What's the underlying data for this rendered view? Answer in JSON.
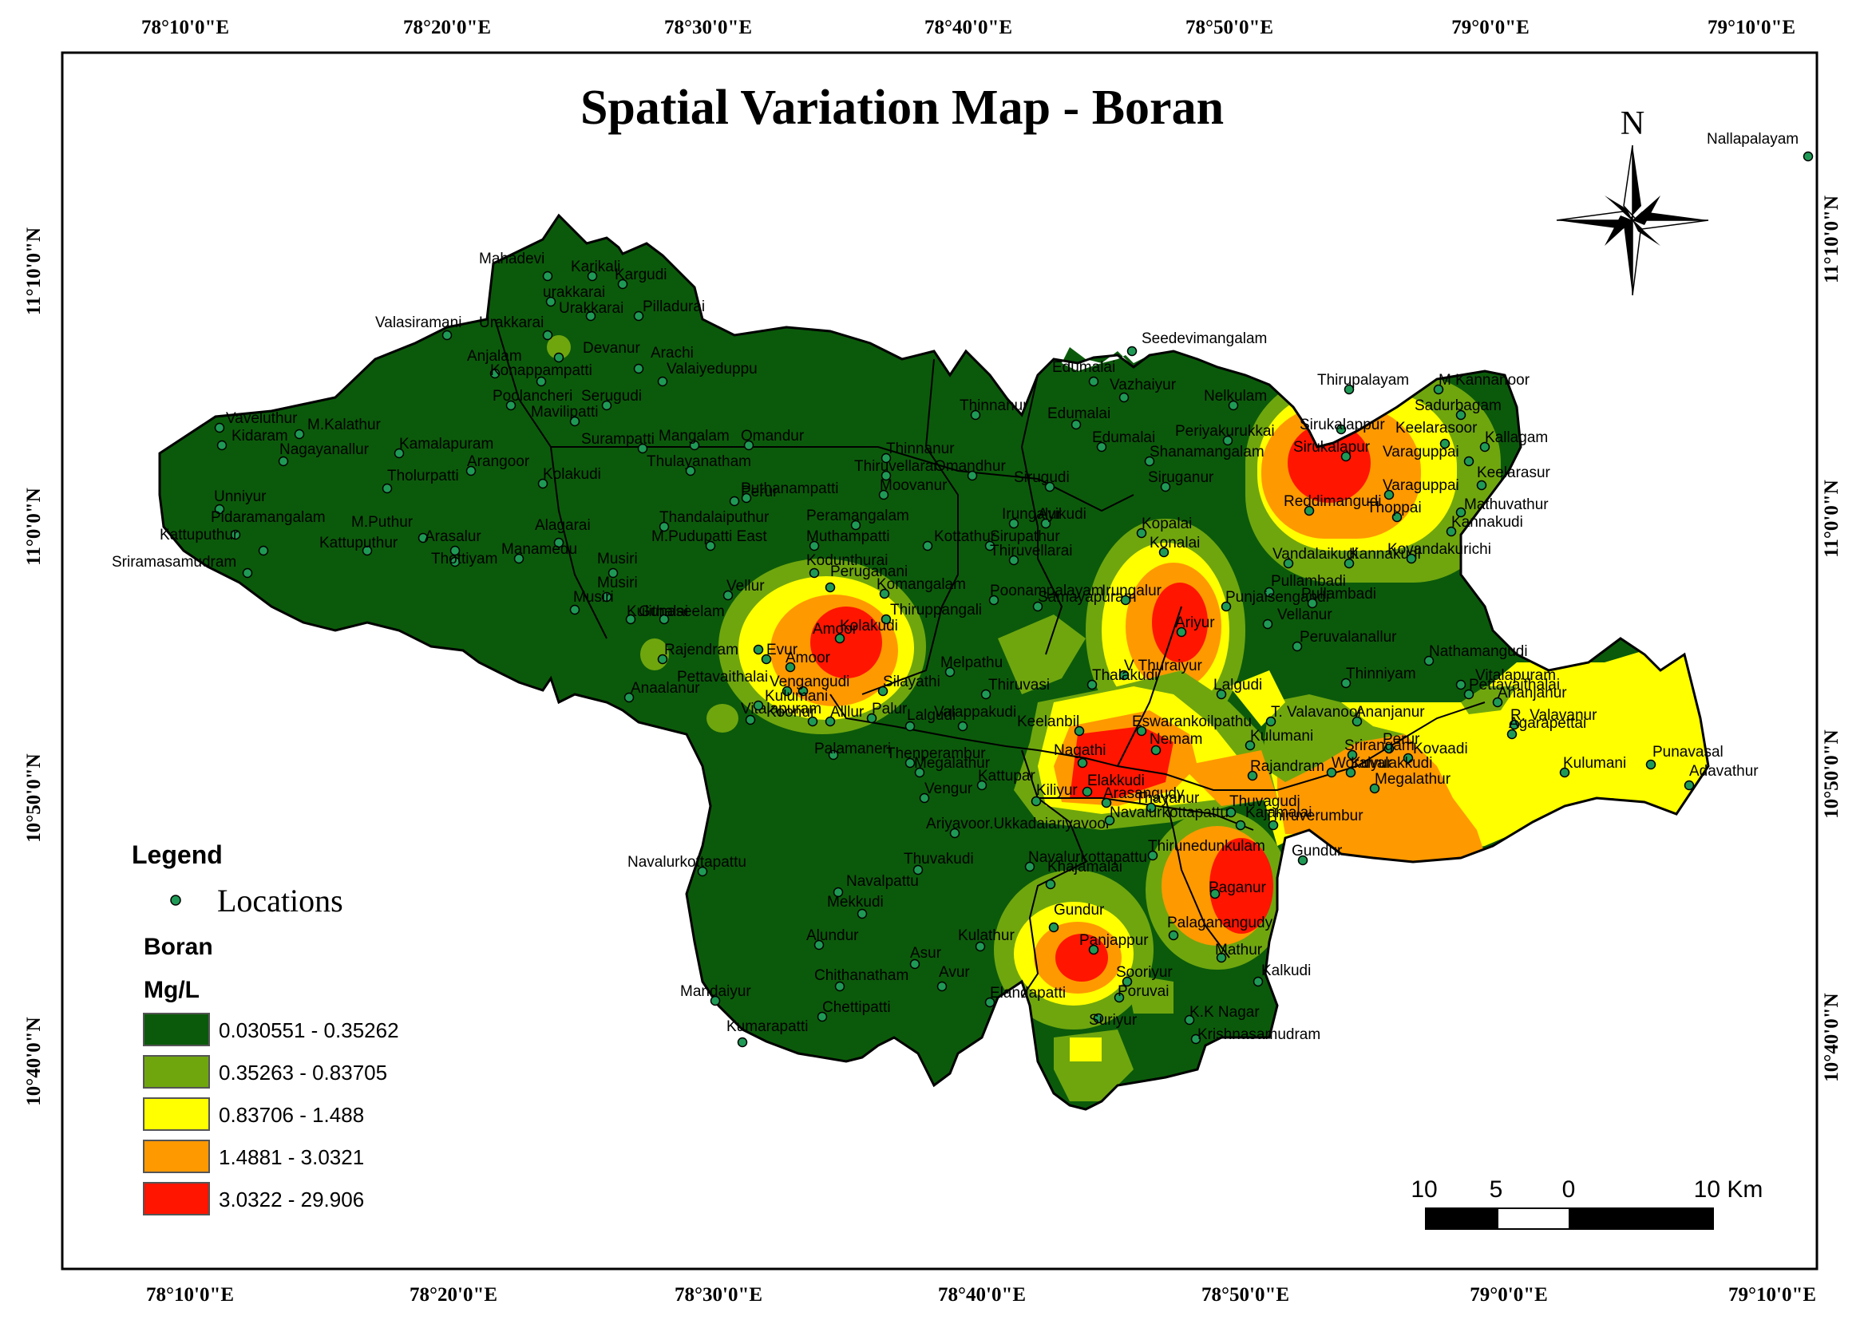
{
  "title": "Spatial Variation Map - Boran",
  "x_ticks": [
    "78°10'0\"E",
    "78°20'0\"E",
    "78°30'0\"E",
    "78°40'0\"E",
    "78°50'0\"E",
    "79°0'0\"E",
    "79°10'0\"E"
  ],
  "y_ticks": [
    "11°10'0\"N",
    "11°0'0\"N",
    "10°50'0\"N",
    "10°40'0\"N"
  ],
  "north_label": "N",
  "legend": {
    "heading": "Legend",
    "locations_label": "Locations",
    "layer_name": "Boran",
    "unit": "Mg/L",
    "classes": [
      {
        "range": "0.030551 - 0.35262",
        "color": "#0b5a0b"
      },
      {
        "range": "0.35263 - 0.83705",
        "color": "#6fa60e"
      },
      {
        "range": "0.83706 - 1.488",
        "color": "#ffff00"
      },
      {
        "range": "1.4881 - 3.0321",
        "color": "#ff9900"
      },
      {
        "range": "3.0322 - 29.906",
        "color": "#ff1500"
      }
    ]
  },
  "scale_bar": {
    "labels": [
      "10",
      "5",
      "0",
      "10 Km"
    ]
  },
  "colors": {
    "boundary": "#000000",
    "point": "#1f9a56",
    "frame": "#000000"
  },
  "places": [
    {
      "name": "Nallapalayam"
    },
    {
      "name": "Mahadevi"
    },
    {
      "name": "Karikali"
    },
    {
      "name": "Kargudi"
    },
    {
      "name": "urakkarai"
    },
    {
      "name": "Urakkarai"
    },
    {
      "name": "Pilladurai"
    },
    {
      "name": "Valasiramani"
    },
    {
      "name": "Urakkarai"
    },
    {
      "name": "Devanur"
    },
    {
      "name": "Arachi"
    },
    {
      "name": "Anjalam"
    },
    {
      "name": "Valaiyeduppu"
    },
    {
      "name": "Konappampatti"
    },
    {
      "name": "Poolancheri"
    },
    {
      "name": "Serugudi"
    },
    {
      "name": "Seedevimangalam"
    },
    {
      "name": "Vaveluthur"
    },
    {
      "name": "M.Kalathur"
    },
    {
      "name": "Mavilipatti"
    },
    {
      "name": "Edumalai"
    },
    {
      "name": "Vazhaiyur"
    },
    {
      "name": "Kidaram"
    },
    {
      "name": "Kamalapuram"
    },
    {
      "name": "Surampatti"
    },
    {
      "name": "Mangalam"
    },
    {
      "name": "Omandur"
    },
    {
      "name": "Thinnanur"
    },
    {
      "name": "Edumalai"
    },
    {
      "name": "Nagayanallur"
    },
    {
      "name": "Arangoor"
    },
    {
      "name": "Kolakudi"
    },
    {
      "name": "Thulayanatham"
    },
    {
      "name": "Thinnanur"
    },
    {
      "name": "Edumalai"
    },
    {
      "name": "Thirupalayam"
    },
    {
      "name": "M Kannanoor"
    },
    {
      "name": "Nelkulam"
    },
    {
      "name": "Sadurbagam"
    },
    {
      "name": "Unniyur"
    },
    {
      "name": "Tholurpatti"
    },
    {
      "name": "Thiruvellarai"
    },
    {
      "name": "Omandhur"
    },
    {
      "name": "Periyakurukkai"
    },
    {
      "name": "Sirukalappur"
    },
    {
      "name": "Keelarasoor"
    },
    {
      "name": "Kallagam"
    },
    {
      "name": "Puthanampatti"
    },
    {
      "name": "Moovanur"
    },
    {
      "name": "Sirugudi"
    },
    {
      "name": "Shanamangalam"
    },
    {
      "name": "Sirukalapur"
    },
    {
      "name": "Varaguppai"
    },
    {
      "name": "Pidaramangalam"
    },
    {
      "name": "M.Puthur"
    },
    {
      "name": "Perur"
    },
    {
      "name": "Siruganur"
    },
    {
      "name": "Keelarasur"
    },
    {
      "name": "Kattuputhur"
    },
    {
      "name": "Kattuputhur"
    },
    {
      "name": "Arasalur"
    },
    {
      "name": "Alagarai"
    },
    {
      "name": "Thandalaiputhur"
    },
    {
      "name": "Peramangalam"
    },
    {
      "name": "Irungalur"
    },
    {
      "name": "Ayikudi"
    },
    {
      "name": "Reddimangudi"
    },
    {
      "name": "Varaguppai"
    },
    {
      "name": "Mathuvathur"
    },
    {
      "name": "Sriramasamudram"
    },
    {
      "name": "Manamedu"
    },
    {
      "name": "Thottiyam"
    },
    {
      "name": "M.Pudupatti East"
    },
    {
      "name": "Muthampatti"
    },
    {
      "name": "Kottathur"
    },
    {
      "name": "Sirupathur"
    },
    {
      "name": "Kopalai"
    },
    {
      "name": "Thoppai"
    },
    {
      "name": "Kannakudi"
    },
    {
      "name": "Musiri"
    },
    {
      "name": "Thiruvellarai"
    },
    {
      "name": "Konalai"
    },
    {
      "name": "Kannakudi"
    },
    {
      "name": "Kovandakurichi"
    },
    {
      "name": "Musiri"
    },
    {
      "name": "Kodunthurai"
    },
    {
      "name": "Peruganani"
    },
    {
      "name": "Vandalaikudi"
    },
    {
      "name": "Vellur"
    },
    {
      "name": "Poonampalayam"
    },
    {
      "name": "Pullambadi"
    },
    {
      "name": "Komangalam"
    },
    {
      "name": "Musiri"
    },
    {
      "name": "Kulithalai"
    },
    {
      "name": "Gunaseelam"
    },
    {
      "name": "Thiruppangali"
    },
    {
      "name": "Samayapuram"
    },
    {
      "name": "Irungalur"
    },
    {
      "name": "Ariyur"
    },
    {
      "name": "Punjaisengandi"
    },
    {
      "name": "Pullambadi"
    },
    {
      "name": "Amoor"
    },
    {
      "name": "Kolakudi"
    },
    {
      "name": "Vellanur"
    },
    {
      "name": "Rajendram"
    },
    {
      "name": "Evur"
    },
    {
      "name": "Peruvalanallur"
    },
    {
      "name": "Nathamangudi"
    },
    {
      "name": "Amoor"
    },
    {
      "name": "Melpathu"
    },
    {
      "name": "V Thuraiyur"
    },
    {
      "name": "Pettavaithalai"
    },
    {
      "name": "Vengangudi"
    },
    {
      "name": "Silayathi"
    },
    {
      "name": "Thiruvasi"
    },
    {
      "name": "Thalakudi"
    },
    {
      "name": "Lalgudi"
    },
    {
      "name": "Thinniyam"
    },
    {
      "name": "Vitalapuram"
    },
    {
      "name": "Pettavaithalai"
    },
    {
      "name": "Anaalanur"
    },
    {
      "name": "Vitalapuram"
    },
    {
      "name": "Ananjanur"
    },
    {
      "name": "Kulumani"
    },
    {
      "name": "Alllur"
    },
    {
      "name": "Palur"
    },
    {
      "name": "Lalgudi"
    },
    {
      "name": "Valappakudi"
    },
    {
      "name": "T. Valavanoor"
    },
    {
      "name": "R. Valavanur"
    },
    {
      "name": "Keelanbil"
    },
    {
      "name": "Eswarankoilpathu"
    },
    {
      "name": "Ananjanur"
    },
    {
      "name": "Agarapettai"
    },
    {
      "name": "Koonur"
    },
    {
      "name": "Nemam"
    },
    {
      "name": "Kulumani"
    },
    {
      "name": "Perur"
    },
    {
      "name": "Srirangam"
    },
    {
      "name": "Kovaadi"
    },
    {
      "name": "Palamaneri"
    },
    {
      "name": "Thenperambur"
    },
    {
      "name": "Nagathi"
    },
    {
      "name": "Kulumani"
    },
    {
      "name": "Punavasal"
    },
    {
      "name": "Megalathur"
    },
    {
      "name": "Rajandram"
    },
    {
      "name": "Woraiyur"
    },
    {
      "name": "Kuvalakkudi"
    },
    {
      "name": "Megalathur"
    },
    {
      "name": "Adavathur"
    },
    {
      "name": "Kattupar"
    },
    {
      "name": "Elakkudi"
    },
    {
      "name": "Vengur"
    },
    {
      "name": "Kiliyur"
    },
    {
      "name": "Arasangudy"
    },
    {
      "name": "Thayanur"
    },
    {
      "name": "Thuvagudi"
    },
    {
      "name": "Kajamalai"
    },
    {
      "name": "Thiruverumbur"
    },
    {
      "name": "Ariyavoor.Ukkadaiariyavoor"
    },
    {
      "name": "Navalurkottapattu"
    },
    {
      "name": "Khajamalai"
    },
    {
      "name": "Thirunedunkulam"
    },
    {
      "name": "Navalurkottapattu"
    },
    {
      "name": "Thuvakudi"
    },
    {
      "name": "Navalurkottapattu"
    },
    {
      "name": "Gundur"
    },
    {
      "name": "Navalpattu"
    },
    {
      "name": "Paganur"
    },
    {
      "name": "Mekkudi"
    },
    {
      "name": "Gundur"
    },
    {
      "name": "Palaganangudy"
    },
    {
      "name": "Alundur"
    },
    {
      "name": "Kulathur"
    },
    {
      "name": "Panjappur"
    },
    {
      "name": "Mathur"
    },
    {
      "name": "Asur"
    },
    {
      "name": "Chithanatham"
    },
    {
      "name": "Avur"
    },
    {
      "name": "Sooriyur"
    },
    {
      "name": "Kalkudi"
    },
    {
      "name": "Mandaiyur"
    },
    {
      "name": "Elandapatti"
    },
    {
      "name": "Poruvai"
    },
    {
      "name": "Chettipatti"
    },
    {
      "name": "K.K Nagar"
    },
    {
      "name": "Suriyur"
    },
    {
      "name": "Kumarapatti"
    },
    {
      "name": "Krishnasamudram"
    }
  ]
}
